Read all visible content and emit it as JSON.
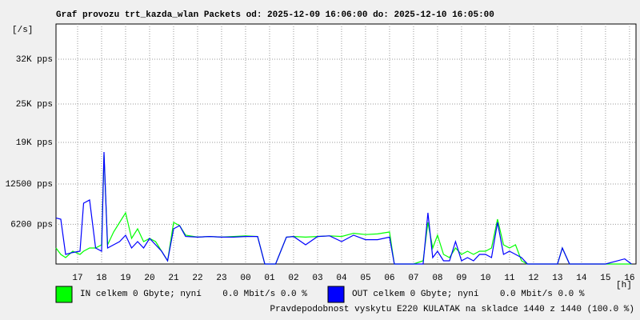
{
  "chart_data": {
    "type": "line",
    "title": "Graf provozu trt_kazda_wlan Packets od: 2025-12-09 16:06:00 do: 2025-12-10 16:05:00",
    "y_label": "[/s]",
    "x_label": "[h]",
    "annotation": "Pravdepodobnost vyskytu E220 KULATAK na skladce 1440 z 1440 (100.0 %)",
    "x": [
      16.1,
      16.3,
      16.5,
      16.8,
      17.1,
      17.25,
      17.5,
      17.75,
      18.0,
      18.1,
      18.25,
      18.5,
      18.75,
      19.0,
      19.25,
      19.5,
      19.75,
      20.0,
      20.25,
      20.5,
      20.75,
      21.0,
      21.25,
      21.5,
      22.0,
      22.5,
      23.0,
      23.5,
      24.0,
      24.5,
      24.8,
      25.25,
      25.7,
      26.0,
      26.5,
      27.0,
      27.5,
      28.0,
      28.5,
      29.0,
      29.5,
      30.0,
      30.2,
      30.6,
      31.0,
      31.4,
      31.6,
      31.8,
      32.0,
      32.25,
      32.5,
      32.75,
      33.0,
      33.25,
      33.5,
      33.75,
      34.0,
      34.25,
      34.5,
      34.75,
      35.0,
      35.25,
      35.5,
      35.75,
      36.0,
      36.5,
      37.0,
      37.2,
      37.5,
      38.0,
      39.0,
      39.8,
      40.08
    ],
    "series": [
      {
        "name": "IN celkem 0 Gbyte; nyní    0.0 Mbit/s 0.0 %",
        "color": "#00ff00",
        "values": [
          2500,
          1500,
          1000,
          2000,
          1500,
          2000,
          2500,
          2500,
          3000,
          17000,
          3000,
          5000,
          6500,
          8000,
          4000,
          5500,
          3500,
          4000,
          3500,
          2000,
          500,
          6500,
          6000,
          4500,
          4200,
          4300,
          4200,
          4300,
          4400,
          4300,
          0,
          0,
          4200,
          4300,
          4200,
          4300,
          4400,
          4300,
          4800,
          4600,
          4700,
          5000,
          0,
          0,
          0,
          500,
          6500,
          2500,
          4500,
          1500,
          1000,
          2500,
          1500,
          2000,
          1500,
          2000,
          2000,
          2500,
          7000,
          3000,
          2500,
          3000,
          500,
          0,
          0,
          0,
          0,
          2500,
          0,
          0,
          0,
          0,
          0
        ]
      },
      {
        "name": "OUT celkem 0 Gbyte; nyní    0.0 Mbit/s 0.0 %",
        "color": "#0000ff",
        "values": [
          7200,
          7000,
          1500,
          1800,
          2000,
          9500,
          10000,
          2500,
          2000,
          17500,
          2500,
          3000,
          3500,
          4500,
          2500,
          3500,
          2500,
          4000,
          3000,
          2000,
          500,
          5500,
          6000,
          4300,
          4200,
          4300,
          4200,
          4200,
          4300,
          4300,
          0,
          0,
          4200,
          4300,
          3000,
          4300,
          4400,
          3500,
          4500,
          3800,
          3800,
          4200,
          0,
          0,
          0,
          0,
          8000,
          1000,
          2000,
          500,
          500,
          3500,
          500,
          1000,
          500,
          1500,
          1500,
          1000,
          6500,
          1500,
          2000,
          1500,
          1000,
          0,
          0,
          0,
          0,
          2500,
          0,
          0,
          0,
          800,
          0
        ]
      }
    ],
    "xlim": [
      16.1,
      40.27
    ],
    "xticks": [
      17,
      18,
      19,
      20,
      21,
      22,
      23,
      {
        "value": 24,
        "label": "00"
      },
      {
        "value": 25,
        "label": "01"
      },
      {
        "value": 26,
        "label": "02"
      },
      {
        "value": 27,
        "label": "03"
      },
      {
        "value": 28,
        "label": "04"
      },
      {
        "value": 29,
        "label": "05"
      },
      {
        "value": 30,
        "label": "06"
      },
      {
        "value": 31,
        "label": "07"
      },
      {
        "value": 32,
        "label": "08"
      },
      {
        "value": 33,
        "label": "09"
      },
      {
        "value": 34,
        "label": "10"
      },
      {
        "value": 35,
        "label": "11"
      },
      {
        "value": 36,
        "label": "12"
      },
      {
        "value": 37,
        "label": "13"
      },
      {
        "value": 38,
        "label": "14"
      },
      {
        "value": 39,
        "label": "15"
      },
      {
        "value": 40,
        "label": "16"
      }
    ],
    "ylim": [
      0,
      37500
    ],
    "yticks": [
      {
        "value": 6200,
        "label": "6200 pps"
      },
      {
        "value": 12500,
        "label": "12500 pps"
      },
      {
        "value": 19000,
        "label": "19K pps"
      },
      {
        "value": 25000,
        "label": "25K pps"
      },
      {
        "value": 32000,
        "label": "32K pps"
      }
    ],
    "grid": true,
    "annotation_color": "#ff0000"
  }
}
